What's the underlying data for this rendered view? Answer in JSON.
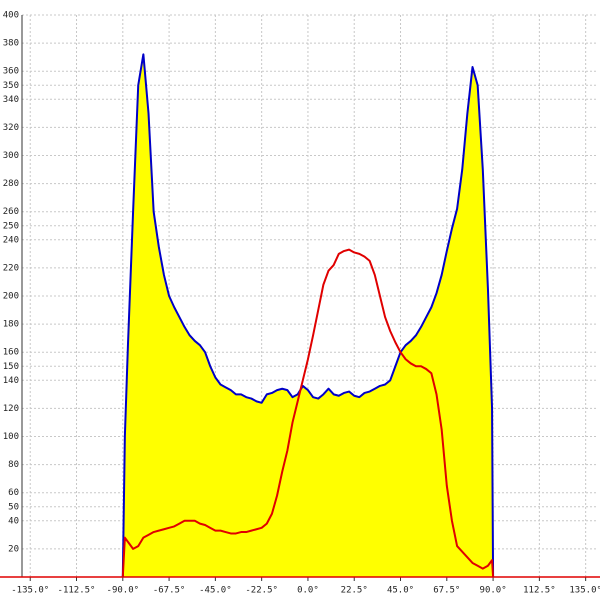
{
  "chart_data": {
    "type": "area",
    "xlim": [
      -139,
      141
    ],
    "ylim": [
      0,
      400
    ],
    "xticks": [
      {
        "value": -135,
        "label": "-135.0°"
      },
      {
        "value": -112.5,
        "label": "-112.5°"
      },
      {
        "value": -90,
        "label": "-90.0°"
      },
      {
        "value": -67.5,
        "label": "-67.5°"
      },
      {
        "value": -45,
        "label": "-45.0°"
      },
      {
        "value": -22.5,
        "label": "-22.5°"
      },
      {
        "value": 0,
        "label": "0.0°"
      },
      {
        "value": 22.5,
        "label": "22.5°"
      },
      {
        "value": 45,
        "label": "45.0°"
      },
      {
        "value": 67.5,
        "label": "67.5°"
      },
      {
        "value": 90,
        "label": "90.0°"
      },
      {
        "value": 112.5,
        "label": "112.5°"
      },
      {
        "value": 135,
        "label": "135.0°"
      }
    ],
    "yticks": [
      20,
      40,
      50,
      60,
      80,
      100,
      120,
      140,
      150,
      160,
      180,
      200,
      220,
      240,
      250,
      260,
      280,
      300,
      320,
      340,
      350,
      360,
      380,
      400
    ],
    "grid": true,
    "x": [
      -90,
      -89,
      -87.5,
      -85,
      -82.5,
      -80,
      -77.5,
      -75,
      -72.5,
      -70,
      -67.5,
      -65,
      -62.5,
      -60,
      -57.5,
      -55,
      -52.5,
      -50,
      -47.5,
      -45,
      -42.5,
      -40,
      -37.5,
      -35,
      -32.5,
      -30,
      -27.5,
      -25,
      -22.5,
      -20,
      -17.5,
      -15,
      -12.5,
      -10,
      -7.5,
      -5,
      -2.5,
      0,
      2.5,
      5,
      7.5,
      10,
      12.5,
      15,
      17.5,
      20,
      22.5,
      25,
      27.5,
      30,
      32.5,
      35,
      37.5,
      40,
      42.5,
      45,
      47.5,
      50,
      52.5,
      55,
      57.5,
      60,
      62.5,
      65,
      67.5,
      70,
      72.5,
      75,
      77.5,
      80,
      82.5,
      85,
      87.5,
      89.5,
      90
    ],
    "series": [
      {
        "color": "#0000c8",
        "fill": "#ffff00",
        "values": [
          0,
          100,
          165,
          260,
          350,
          372,
          330,
          260,
          235,
          215,
          200,
          192,
          185,
          178,
          172,
          168,
          165,
          160,
          150,
          142,
          137,
          135,
          133,
          130,
          130,
          128,
          127,
          125,
          124,
          130,
          131,
          133,
          134,
          133,
          128,
          130,
          136,
          133,
          128,
          127,
          130,
          134,
          130,
          129,
          131,
          132,
          129,
          128,
          131,
          132,
          134,
          136,
          137,
          140,
          150,
          160,
          165,
          168,
          172,
          178,
          185,
          192,
          202,
          215,
          232,
          248,
          262,
          290,
          330,
          363,
          350,
          290,
          205,
          120,
          0
        ]
      },
      {
        "color": "#e00000",
        "values": [
          0,
          28,
          25,
          20,
          22,
          28,
          30,
          32,
          33,
          34,
          35,
          36,
          38,
          40,
          40,
          40,
          38,
          37,
          35,
          33,
          33,
          32,
          31,
          31,
          32,
          32,
          33,
          34,
          35,
          38,
          45,
          58,
          75,
          90,
          110,
          125,
          140,
          155,
          172,
          190,
          208,
          218,
          222,
          230,
          232,
          233,
          231,
          230,
          228,
          225,
          215,
          200,
          185,
          175,
          167,
          160,
          155,
          152,
          150,
          150,
          148,
          145,
          130,
          105,
          65,
          40,
          22,
          18,
          14,
          10,
          8,
          6,
          8,
          12,
          0
        ]
      }
    ]
  }
}
